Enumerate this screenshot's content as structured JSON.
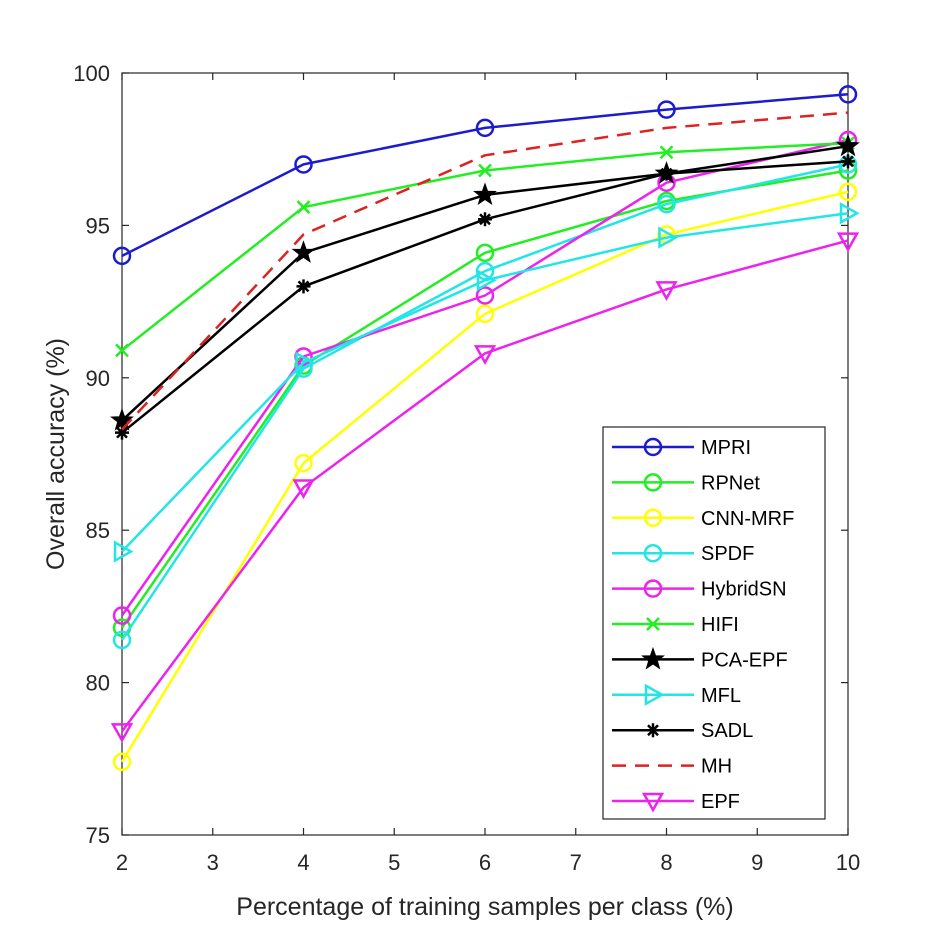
{
  "chart_data": {
    "type": "line",
    "title": "",
    "xlabel": "Percentage of training samples per class (%)",
    "ylabel": "Overall accuracy (%)",
    "xlim": [
      2,
      10
    ],
    "ylim": [
      75,
      100
    ],
    "xticks": [
      2,
      3,
      4,
      5,
      6,
      7,
      8,
      9,
      10
    ],
    "yticks": [
      75,
      80,
      85,
      90,
      95,
      100
    ],
    "grid": false,
    "legend_position": "lower-right",
    "x": [
      2,
      4,
      6,
      8,
      10
    ],
    "series": [
      {
        "name": "MPRI",
        "color": "#1c1ccc",
        "marker": "circle",
        "dash": "solid",
        "values": [
          94.0,
          97.0,
          98.2,
          98.8,
          99.3
        ]
      },
      {
        "name": "RPNet",
        "color": "#22ee22",
        "marker": "circle",
        "dash": "solid",
        "values": [
          81.8,
          90.4,
          94.1,
          95.8,
          96.8
        ]
      },
      {
        "name": "CNN-MRF",
        "color": "#ffff00",
        "marker": "circle",
        "dash": "solid",
        "values": [
          77.4,
          87.2,
          92.1,
          94.7,
          96.1
        ]
      },
      {
        "name": "SPDF",
        "color": "#22e6e6",
        "marker": "circle",
        "dash": "solid",
        "values": [
          81.4,
          90.3,
          93.5,
          95.7,
          97.0
        ]
      },
      {
        "name": "HybridSN",
        "color": "#ee22ee",
        "marker": "circle",
        "dash": "solid",
        "values": [
          82.2,
          90.7,
          92.7,
          96.4,
          97.8
        ]
      },
      {
        "name": "HIFI",
        "color": "#22ee22",
        "marker": "x",
        "dash": "solid",
        "values": [
          90.9,
          95.6,
          96.8,
          97.4,
          97.7
        ]
      },
      {
        "name": "PCA-EPF",
        "color": "#000000",
        "marker": "star",
        "dash": "solid",
        "values": [
          88.6,
          94.1,
          96.0,
          96.7,
          97.6
        ]
      },
      {
        "name": "MFL",
        "color": "#22e6e6",
        "marker": "triangle-right",
        "dash": "solid",
        "values": [
          84.3,
          90.5,
          93.2,
          94.6,
          95.4
        ]
      },
      {
        "name": "SADL",
        "color": "#000000",
        "marker": "asterisk",
        "dash": "solid",
        "values": [
          88.2,
          93.0,
          95.2,
          96.7,
          97.1
        ]
      },
      {
        "name": "MH",
        "color": "#dd2222",
        "marker": "none",
        "dash": "dashed",
        "values": [
          88.3,
          94.7,
          97.3,
          98.2,
          98.7
        ]
      },
      {
        "name": "EPF",
        "color": "#ee22ee",
        "marker": "triangle-down",
        "dash": "solid",
        "values": [
          78.4,
          86.4,
          90.8,
          92.9,
          94.5
        ]
      }
    ]
  }
}
